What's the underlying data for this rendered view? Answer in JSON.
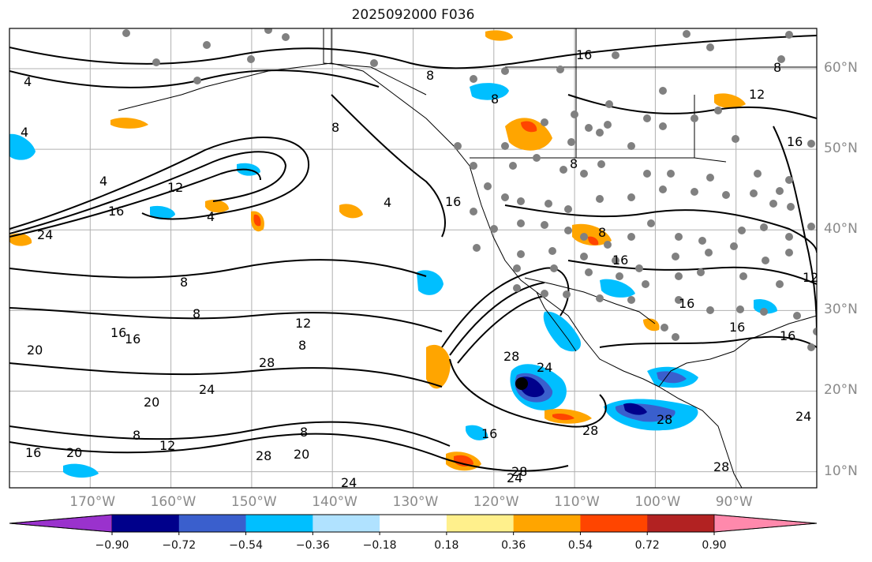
{
  "title": "2025092000 F036",
  "map": {
    "lat_labels": [
      {
        "lat": 60,
        "text": "60°N"
      },
      {
        "lat": 50,
        "text": "50°N"
      },
      {
        "lat": 40,
        "text": "40°N"
      },
      {
        "lat": 30,
        "text": "30°N"
      },
      {
        "lat": 20,
        "text": "20°N"
      },
      {
        "lat": 10,
        "text": "10°N"
      }
    ],
    "lon_labels": [
      {
        "lon": -170,
        "text": "170°W"
      },
      {
        "lon": -160,
        "text": "160°W"
      },
      {
        "lon": -150,
        "text": "150°W"
      },
      {
        "lon": -140,
        "text": "140°W"
      },
      {
        "lon": -130,
        "text": "130°W"
      },
      {
        "lon": -120,
        "text": "120°W"
      },
      {
        "lon": -110,
        "text": "110°W"
      },
      {
        "lon": -100,
        "text": "100°W"
      },
      {
        "lon": -90,
        "text": "90°W"
      }
    ],
    "lon_range": [
      -180,
      -80
    ],
    "lat_range": [
      8,
      65
    ],
    "grid": true,
    "contour_labels": [
      "4",
      "8",
      "12",
      "16",
      "20",
      "24",
      "28"
    ],
    "colors": {
      "ocean": "#ffffff",
      "grid": "#b0b0b0",
      "contour": "#000000",
      "station": "#808080"
    }
  },
  "colorbar": {
    "levels": [
      "−0.90",
      "−0.72",
      "−0.54",
      "−0.36",
      "−0.18",
      "0.18",
      "0.36",
      "0.54",
      "0.72",
      "0.90"
    ],
    "colors": [
      "#9a32cd",
      "#00008b",
      "#3a5fcd",
      "#00bfff",
      "#b0e2ff",
      "#ffffff",
      "#fff08c",
      "#ffa500",
      "#ff4500",
      "#b22222",
      "#ff89ac"
    ]
  }
}
